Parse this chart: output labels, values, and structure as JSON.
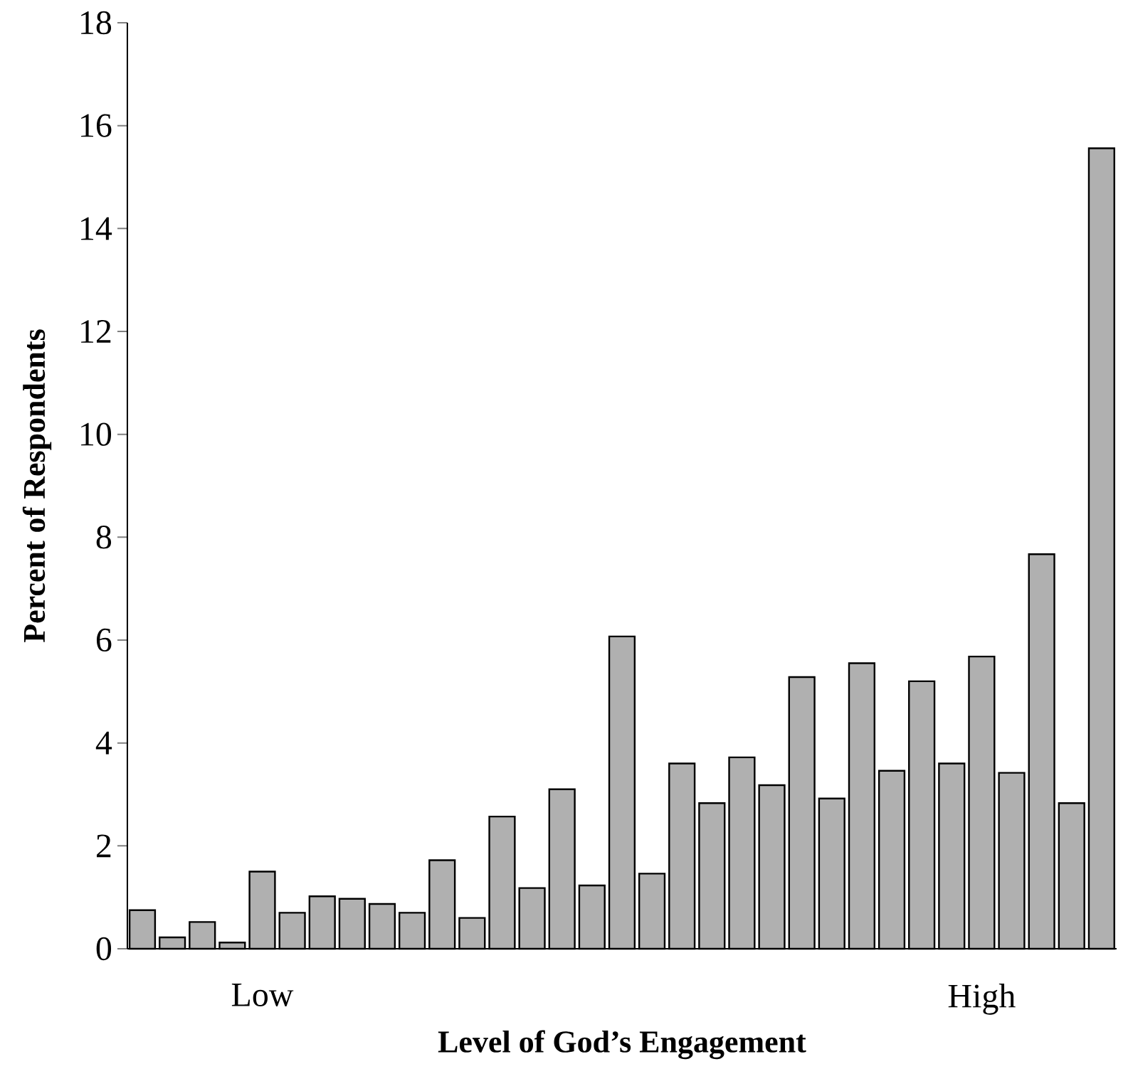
{
  "chart_data": {
    "type": "bar",
    "xlabel": "Level of God’s Engagement",
    "ylabel": "Percent of Respondents",
    "categories": [
      null,
      null,
      null,
      null,
      "Low",
      null,
      null,
      null,
      null,
      null,
      null,
      null,
      null,
      null,
      null,
      null,
      null,
      null,
      null,
      null,
      null,
      null,
      null,
      null,
      null,
      null,
      null,
      null,
      "High",
      null,
      null,
      null,
      null
    ],
    "values": [
      0.75,
      0.22,
      0.52,
      0.12,
      1.5,
      0.7,
      1.02,
      0.97,
      0.87,
      0.7,
      1.72,
      0.6,
      2.57,
      1.18,
      3.1,
      1.23,
      6.07,
      1.46,
      3.6,
      2.83,
      3.72,
      3.18,
      5.28,
      2.92,
      5.55,
      3.46,
      5.2,
      3.6,
      5.68,
      3.42,
      7.67,
      2.83,
      15.56
    ],
    "color": "#b0b0b0",
    "ylim": [
      0,
      18
    ],
    "yticks": [
      0,
      2,
      4,
      6,
      8,
      10,
      12,
      14,
      16,
      18
    ]
  }
}
